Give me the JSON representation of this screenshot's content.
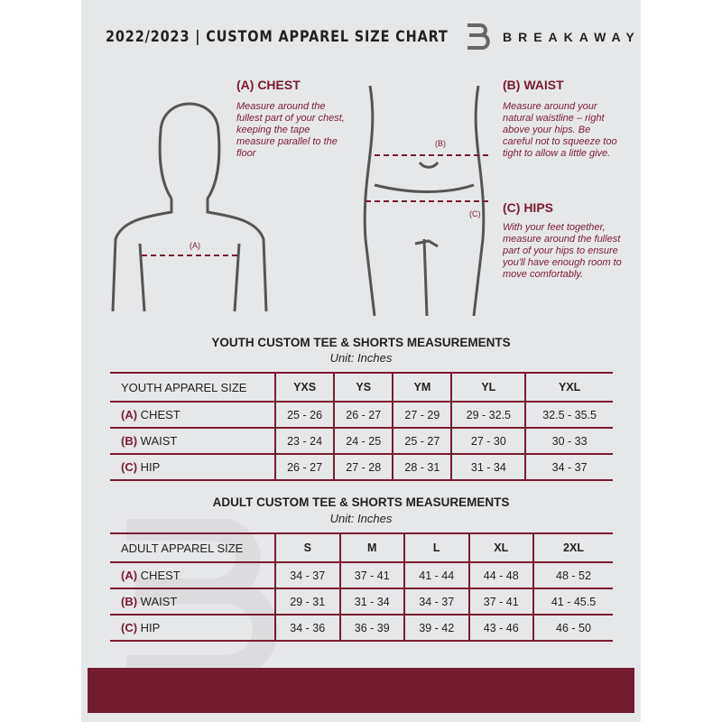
{
  "header": {
    "title": "2022/2023  |  CUSTOM APPAREL SIZE CHART",
    "brand": "BREAKAWAY"
  },
  "colors": {
    "accent": "#7a1c30",
    "panel": "#e6e7e9"
  },
  "chest": {
    "heading": "(A) CHEST",
    "text": "Measure around the fullest part of your chest, keeping the tape measure parallel to the floor",
    "marker": "(A)"
  },
  "waist": {
    "heading": "(B) WAIST",
    "text": "Measure around your natural waistline – right above your hips. Be careful not to squeeze too tight to allow a little give.",
    "marker": "(B)"
  },
  "hips": {
    "heading": "(C) HIPS",
    "text": "With your feet together, measure around the fullest part of your hips to ensure you'll have enough room to move comfortably.",
    "marker": "(C)"
  },
  "youth": {
    "title": "YOUTH CUSTOM TEE & SHORTS MEASUREMENTS",
    "unit": "Unit: Inches",
    "size_label": "YOUTH APPAREL SIZE",
    "sizes": [
      "YXS",
      "YS",
      "YM",
      "YL",
      "YXL"
    ],
    "rows": [
      {
        "tag": "(A)",
        "name": "CHEST",
        "values": [
          "25 - 26",
          "26 - 27",
          "27 - 29",
          "29 - 32.5",
          "32.5 - 35.5"
        ]
      },
      {
        "tag": "(B)",
        "name": "WAIST",
        "values": [
          "23 - 24",
          "24 - 25",
          "25 - 27",
          "27 - 30",
          "30 - 33"
        ]
      },
      {
        "tag": "(C)",
        "name": "HIP",
        "values": [
          "26 - 27",
          "27 - 28",
          "28 - 31",
          "31 - 34",
          "34 - 37"
        ]
      }
    ]
  },
  "adult": {
    "title": "ADULT CUSTOM TEE & SHORTS MEASUREMENTS",
    "unit": "Unit: Inches",
    "size_label": "ADULT APPAREL SIZE",
    "sizes": [
      "S",
      "M",
      "L",
      "XL",
      "2XL"
    ],
    "rows": [
      {
        "tag": "(A)",
        "name": "CHEST",
        "values": [
          "34 - 37",
          "37 - 41",
          "41 - 44",
          "44 - 48",
          "48 - 52"
        ]
      },
      {
        "tag": "(B)",
        "name": "WAIST",
        "values": [
          "29 - 31",
          "31 - 34",
          "34 - 37",
          "37 - 41",
          "41 - 45.5"
        ]
      },
      {
        "tag": "(C)",
        "name": "HIP",
        "values": [
          "34 - 36",
          "36 - 39",
          "39 - 42",
          "43 - 46",
          "46 - 50"
        ]
      }
    ]
  }
}
